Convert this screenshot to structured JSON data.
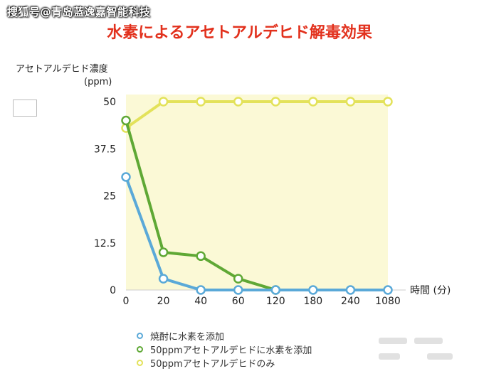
{
  "watermark": "搜狐号@青岛蓝逸嘉智能科技",
  "chart_data": {
    "type": "line",
    "title": "水素によるアセトアルデヒド解毒効果",
    "ylabel": "アセトアルデヒド濃度",
    "yunit": "(ppm)",
    "xlabel": "時間 (分)",
    "categories": [
      "0",
      "20",
      "40",
      "60",
      "120",
      "180",
      "240",
      "1080"
    ],
    "yticks": [
      "0",
      "12.5",
      "25",
      "37.5",
      "50"
    ],
    "ylim": [
      0,
      50
    ],
    "grid": false,
    "legend_position": "bottom-left",
    "series": [
      {
        "name": "焼酎に水素を添加",
        "color": "#5aa9d8",
        "values": [
          30,
          3,
          0,
          0,
          0,
          0,
          0,
          0
        ]
      },
      {
        "name": "50ppmアセトアルデヒドに水素を添加",
        "color": "#5fa835",
        "values": [
          45,
          10,
          9,
          3,
          0,
          null,
          null,
          null
        ]
      },
      {
        "name": "50ppmアセトアルデヒドのみ",
        "color": "#e3e25a",
        "values": [
          43,
          50,
          50,
          50,
          50,
          50,
          50,
          50
        ]
      }
    ]
  }
}
